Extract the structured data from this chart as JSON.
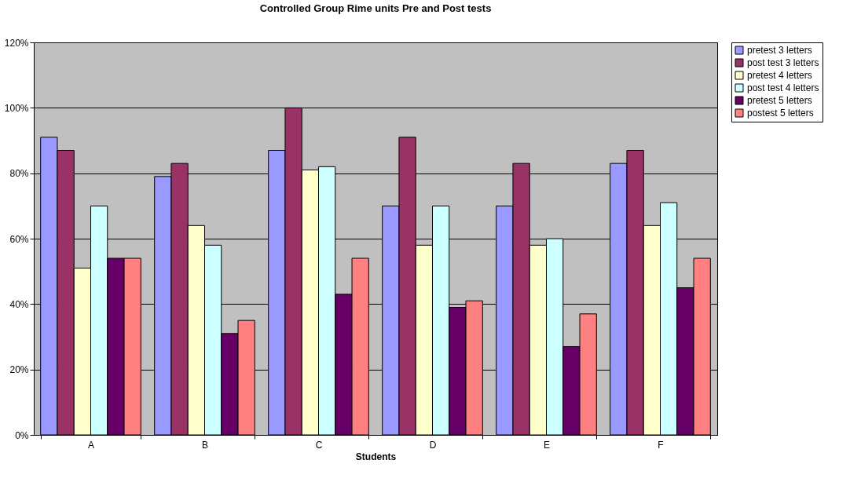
{
  "chart_data": {
    "type": "bar",
    "title": "Controlled Group Rime units Pre and Post tests",
    "xlabel": "Students",
    "categories": [
      "A",
      "B",
      "C",
      "D",
      "E",
      "F"
    ],
    "series": [
      {
        "name": "pretest 3 letters",
        "color": "#9999ff",
        "values": [
          91,
          79,
          87,
          70,
          70,
          83
        ]
      },
      {
        "name": "post test 3 letters",
        "color": "#993366",
        "values": [
          87,
          83,
          100,
          91,
          83,
          87
        ]
      },
      {
        "name": "pretest 4 letters",
        "color": "#ffffcc",
        "values": [
          51,
          64,
          81,
          58,
          58,
          64
        ]
      },
      {
        "name": "post test 4 letters",
        "color": "#ccffff",
        "values": [
          70,
          58,
          82,
          70,
          60,
          71
        ]
      },
      {
        "name": "pretest 5 letters",
        "color": "#660066",
        "values": [
          54,
          31,
          43,
          39,
          27,
          45
        ]
      },
      {
        "name": "postest 5 letters",
        "color": "#ff8080",
        "values": [
          54,
          35,
          54,
          41,
          37,
          54
        ]
      }
    ],
    "ylim": [
      0,
      120
    ],
    "yticks": [
      {
        "value": 0,
        "label": "0%"
      },
      {
        "value": 20,
        "label": "20%"
      },
      {
        "value": 40,
        "label": "40%"
      },
      {
        "value": 60,
        "label": "60%"
      },
      {
        "value": 80,
        "label": "80%"
      },
      {
        "value": 100,
        "label": "100%"
      },
      {
        "value": 120,
        "label": "120%"
      }
    ],
    "grid": "y",
    "legend": "right"
  }
}
